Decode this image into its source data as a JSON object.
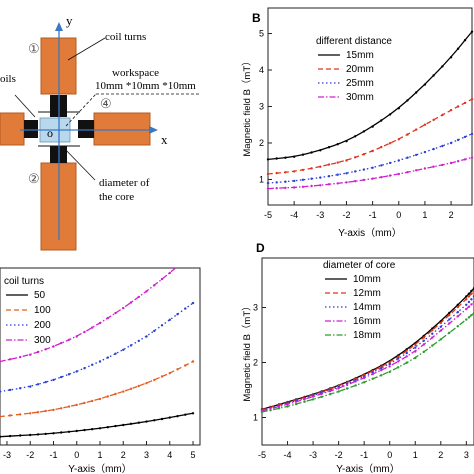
{
  "diagram": {
    "labels": {
      "y_axis": "y",
      "x_axis": "x",
      "origin": "o",
      "coil_1": "①",
      "coil_2": "②",
      "workspace_4": "④",
      "coil_turns": "coil turns",
      "workspace": "workspace",
      "workspace_size": "10mm *10mm *10mm",
      "coils_partial": "oils",
      "core_diameter_line1": "diameter of",
      "core_diameter_line2": "the core"
    },
    "colors": {
      "coil": "#e07b39",
      "core": "#111111",
      "workspace": "#b9d8ee",
      "axis": "#3a78c2"
    }
  },
  "panels": {
    "B": {
      "letter": "B",
      "ylabel": "Magnetic field B（mT）",
      "xlabel": "Y-axis（mm）",
      "legend_title": "different distance",
      "xticks": [
        "-5",
        "-4",
        "-3",
        "-2",
        "-1",
        "0",
        "1",
        "2"
      ],
      "yticks": [
        "1",
        "2",
        "3",
        "4",
        "5"
      ]
    },
    "C": {
      "letter": "",
      "ylabel": "",
      "xlabel": "Y-axis（mm）",
      "legend_title": "coil turns",
      "xticks": [
        "-3",
        "-2",
        "-1",
        "0",
        "1",
        "2",
        "3",
        "4",
        "5"
      ],
      "yticks": []
    },
    "D": {
      "letter": "D",
      "ylabel": "Magnetic field B（mT）",
      "xlabel": "Y-axis（mm）",
      "legend_title": "diameter of core",
      "xticks": [
        "-5",
        "-4",
        "-3",
        "-2",
        "-1",
        "0",
        "1",
        "2",
        "3"
      ],
      "yticks": [
        "1",
        "2",
        "3"
      ]
    }
  },
  "chart_data": [
    {
      "type": "line",
      "panel": "B",
      "xlabel": "Y-axis（mm）",
      "ylabel": "Magnetic field B（mT）",
      "xlim": [
        -5,
        2.8
      ],
      "ylim": [
        0.3,
        5.7
      ],
      "x": [
        -5,
        -4,
        -3,
        -2,
        -1,
        0,
        1,
        2,
        2.8
      ],
      "series": [
        {
          "name": "15mm",
          "color": "#000000",
          "dash": "solid",
          "values": [
            1.55,
            1.62,
            1.8,
            2.05,
            2.45,
            2.95,
            3.6,
            4.35,
            5.05
          ]
        },
        {
          "name": "20mm",
          "color": "#e0341e",
          "dash": "dash",
          "values": [
            1.15,
            1.22,
            1.35,
            1.52,
            1.78,
            2.1,
            2.5,
            2.9,
            3.2
          ]
        },
        {
          "name": "25mm",
          "color": "#2a3fd6",
          "dash": "dot",
          "values": [
            0.9,
            0.96,
            1.05,
            1.17,
            1.32,
            1.52,
            1.75,
            2.0,
            2.25
          ]
        },
        {
          "name": "30mm",
          "color": "#d020d0",
          "dash": "dashdot",
          "values": [
            0.75,
            0.78,
            0.84,
            0.92,
            1.02,
            1.15,
            1.3,
            1.45,
            1.6
          ]
        }
      ],
      "legend": "top-left"
    },
    {
      "type": "line",
      "panel": "C",
      "xlabel": "Y-axis（mm）",
      "xlim": [
        -3.3,
        5.3
      ],
      "ylim": [
        0.3,
        5.6
      ],
      "x": [
        -3.3,
        -2,
        -1,
        0,
        1,
        2,
        3,
        4,
        5
      ],
      "series": [
        {
          "name": "50",
          "color": "#000000",
          "dash": "solid",
          "values": [
            0.55,
            0.6,
            0.65,
            0.72,
            0.8,
            0.9,
            1.0,
            1.12,
            1.25
          ]
        },
        {
          "name": "100",
          "color": "#e65c1e",
          "dash": "dash",
          "values": [
            1.15,
            1.25,
            1.35,
            1.5,
            1.68,
            1.9,
            2.15,
            2.45,
            2.8
          ]
        },
        {
          "name": "200",
          "color": "#2a3fd6",
          "dash": "dot",
          "values": [
            1.9,
            2.05,
            2.25,
            2.5,
            2.8,
            3.15,
            3.55,
            4.05,
            4.55
          ]
        },
        {
          "name": "300",
          "color": "#d020d0",
          "dash": "dashdot",
          "values": [
            2.8,
            3.0,
            3.25,
            3.55,
            3.95,
            4.4,
            4.9,
            5.45,
            6.05
          ]
        }
      ],
      "legend": "top-left"
    },
    {
      "type": "line",
      "panel": "D",
      "xlabel": "Y-axis（mm）",
      "ylabel": "Magnetic field B（mT）",
      "xlim": [
        -5,
        3.3
      ],
      "ylim": [
        0.5,
        3.9
      ],
      "x": [
        -5,
        -4,
        -3,
        -2,
        -1,
        0,
        1,
        2,
        3,
        3.3
      ],
      "series": [
        {
          "name": "10mm",
          "color": "#000000",
          "dash": "solid",
          "values": [
            1.15,
            1.28,
            1.42,
            1.58,
            1.78,
            2.02,
            2.35,
            2.75,
            3.2,
            3.35
          ]
        },
        {
          "name": "12mm",
          "color": "#e0341e",
          "dash": "dash",
          "values": [
            1.14,
            1.27,
            1.41,
            1.57,
            1.77,
            2.0,
            2.32,
            2.72,
            3.15,
            3.3
          ]
        },
        {
          "name": "14mm",
          "color": "#2a3fd6",
          "dash": "dot",
          "values": [
            1.13,
            1.26,
            1.4,
            1.55,
            1.75,
            1.97,
            2.27,
            2.65,
            3.05,
            3.2
          ]
        },
        {
          "name": "16mm",
          "color": "#d020d0",
          "dash": "dashdot",
          "values": [
            1.12,
            1.24,
            1.38,
            1.53,
            1.72,
            1.93,
            2.2,
            2.58,
            2.97,
            3.1
          ]
        },
        {
          "name": "18mm",
          "color": "#2e9a2e",
          "dash": "dashdot",
          "values": [
            1.1,
            1.2,
            1.33,
            1.47,
            1.64,
            1.83,
            2.08,
            2.42,
            2.78,
            2.9
          ]
        }
      ],
      "legend": "top-left"
    }
  ]
}
